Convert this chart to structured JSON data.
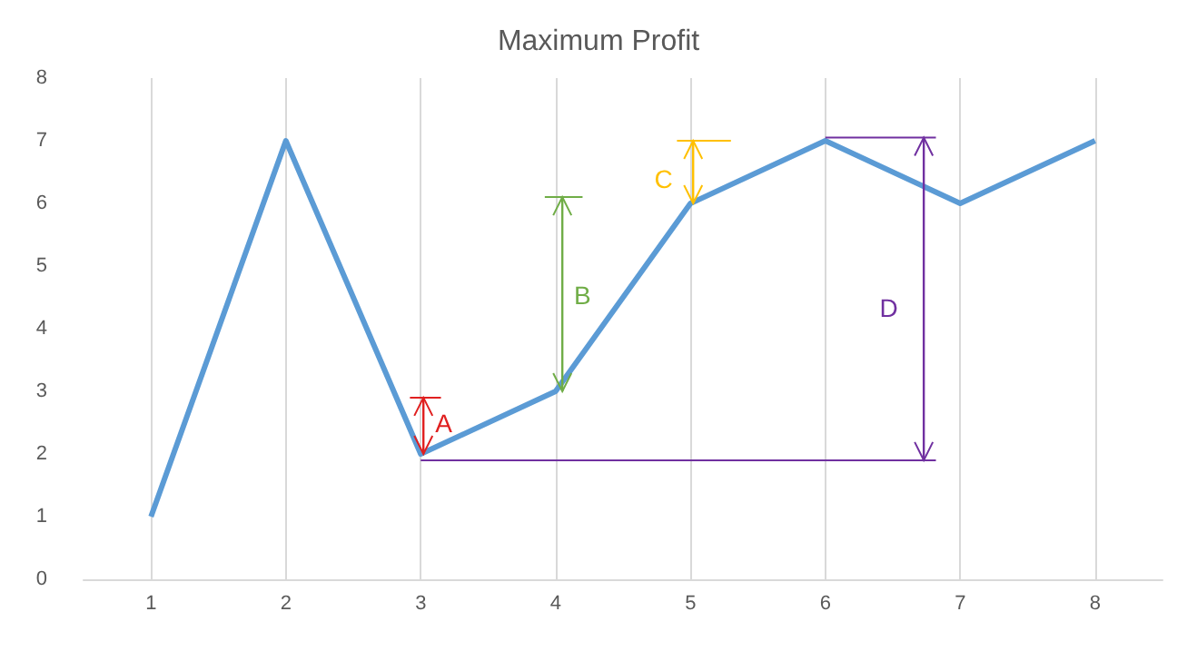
{
  "chart_data": {
    "type": "line",
    "title": "Maximum Profit",
    "x": [
      1,
      2,
      3,
      4,
      5,
      6,
      7,
      8
    ],
    "series": [
      {
        "color": "#5b9bd5",
        "values": [
          1,
          7,
          2,
          3,
          6,
          7,
          6,
          7
        ]
      }
    ],
    "xlim": [
      0.5,
      8.5
    ],
    "xticks": [
      1,
      2,
      3,
      4,
      5,
      6,
      7,
      8
    ],
    "ylim": [
      0,
      8
    ],
    "yticks": [
      0,
      1,
      2,
      3,
      4,
      5,
      6,
      7,
      8
    ],
    "grid": "x",
    "marker": "none",
    "line_style": "solid",
    "annotations": [
      "A",
      "B",
      "C",
      "D"
    ]
  }
}
